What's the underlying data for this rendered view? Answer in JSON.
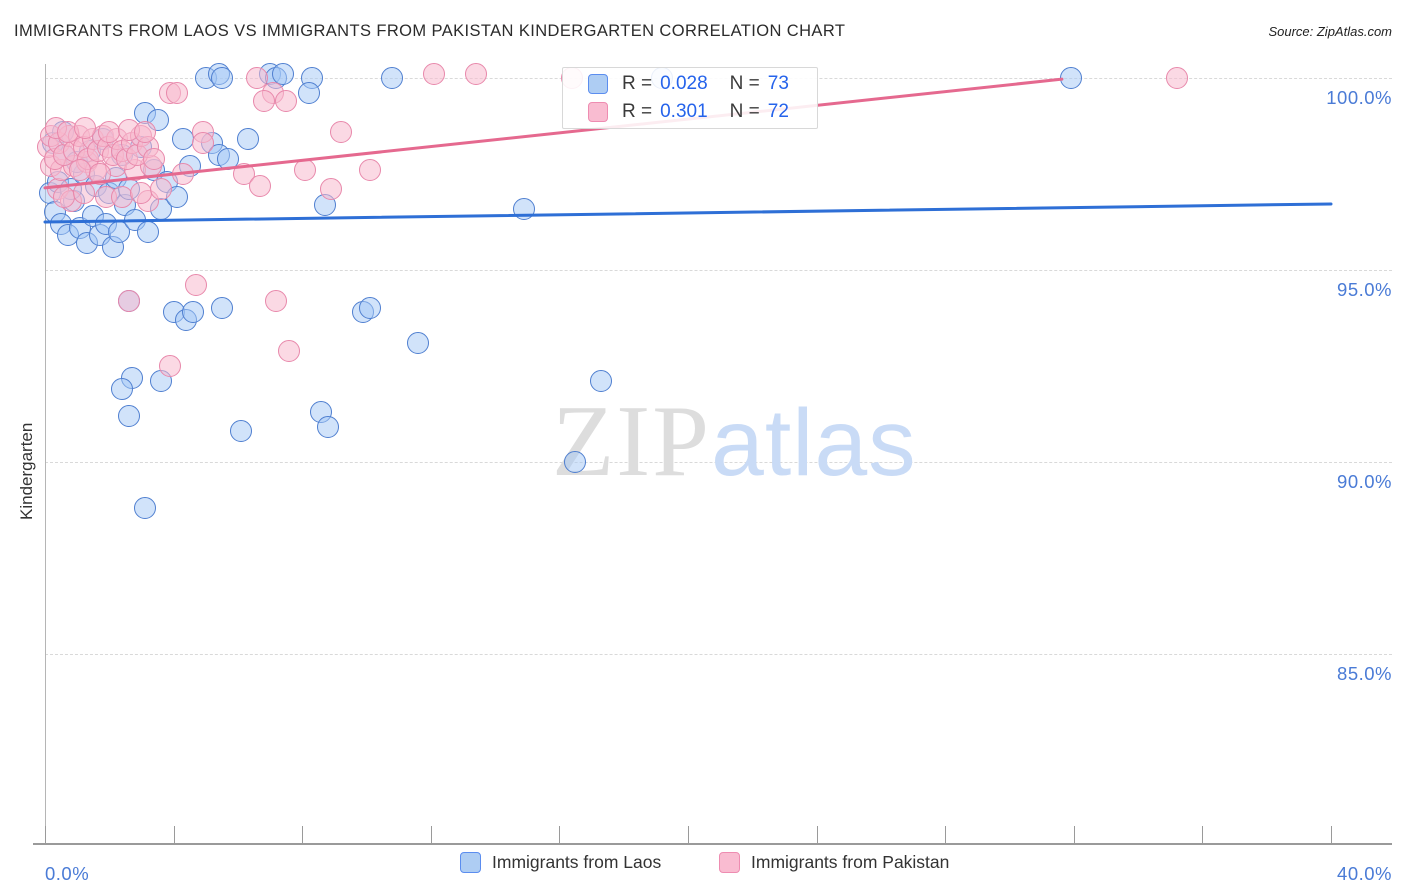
{
  "header": {
    "title": "IMMIGRANTS FROM LAOS VS IMMIGRANTS FROM PAKISTAN KINDERGARTEN CORRELATION CHART",
    "source": "Source: ZipAtlas.com"
  },
  "watermark": {
    "zip": "ZIP",
    "atlas": "atlas"
  },
  "axes": {
    "y_label": "Kindergarten",
    "y_ticks": [
      {
        "value": 100,
        "label": "100.0%"
      },
      {
        "value": 95,
        "label": "95.0%"
      },
      {
        "value": 90,
        "label": "90.0%"
      },
      {
        "value": 85,
        "label": "85.0%"
      }
    ],
    "x_min_label": "0.0%",
    "x_max_label": "40.0%",
    "x_tick_count": 11
  },
  "legend_box": {
    "rows": [
      {
        "series": "laos",
        "r_label": "R =",
        "r_value": "0.028",
        "n_label": "N =",
        "n_value": "73"
      },
      {
        "series": "pak",
        "r_label": "R =",
        "r_value": "0.301",
        "n_label": "N =",
        "n_value": "72"
      }
    ]
  },
  "bottom_legend": [
    {
      "series": "laos",
      "label": "Immigrants from Laos"
    },
    {
      "series": "pak",
      "label": "Immigrants from Pakistan"
    }
  ],
  "colors": {
    "laos_fill": "rgba(164,200,245,0.50)",
    "laos_stroke": "#4f7fd0",
    "laos_trend": "#2e6fd6",
    "pak_fill": "rgba(248,185,206,0.55)",
    "pak_stroke": "#e888ab",
    "pak_trend": "#e5698f",
    "axis_label": "#4a7bd6",
    "grid": "#d9d9d9"
  },
  "chart_data": {
    "type": "scatter",
    "xlabel": "",
    "ylabel": "Kindergarten",
    "xlim": [
      0,
      40
    ],
    "ylim": [
      80.5,
      100.35
    ],
    "grid": "horizontal-dashed",
    "legend_position": "top-center and bottom",
    "series": [
      {
        "name": "Immigrants from Laos",
        "r": 0.028,
        "n": 73,
        "class": "laos",
        "trend": {
          "x1": 0,
          "y1": 96.25,
          "x2": 40,
          "y2": 96.72
        },
        "points": [
          [
            5.0,
            100
          ],
          [
            5.4,
            100.1
          ],
          [
            5.5,
            100
          ],
          [
            7.0,
            100.1
          ],
          [
            7.2,
            100
          ],
          [
            7.4,
            100.1
          ],
          [
            8.3,
            100
          ],
          [
            8.2,
            99.6
          ],
          [
            10.8,
            100
          ],
          [
            19.2,
            100
          ],
          [
            31.9,
            100
          ],
          [
            3.1,
            99.1
          ],
          [
            3.5,
            98.9
          ],
          [
            4.3,
            98.4
          ],
          [
            6.3,
            98.4
          ],
          [
            5.2,
            98.3
          ],
          [
            5.4,
            98.0
          ],
          [
            5.7,
            97.9
          ],
          [
            8.7,
            96.7
          ],
          [
            14.9,
            96.6
          ],
          [
            2.6,
            94.2
          ],
          [
            4.0,
            93.9
          ],
          [
            4.4,
            93.7
          ],
          [
            4.6,
            93.9
          ],
          [
            5.5,
            94.0
          ],
          [
            9.9,
            93.9
          ],
          [
            10.1,
            94.0
          ],
          [
            11.6,
            93.1
          ],
          [
            17.3,
            92.1
          ],
          [
            2.7,
            92.2
          ],
          [
            2.4,
            91.9
          ],
          [
            3.6,
            92.1
          ],
          [
            2.6,
            91.2
          ],
          [
            6.1,
            90.8
          ],
          [
            8.6,
            91.3
          ],
          [
            8.8,
            90.9
          ],
          [
            16.5,
            90.0
          ],
          [
            3.1,
            88.8
          ],
          [
            0.15,
            97.0
          ],
          [
            0.3,
            96.5
          ],
          [
            0.5,
            96.2
          ],
          [
            0.7,
            95.9
          ],
          [
            0.9,
            96.8
          ],
          [
            1.1,
            96.1
          ],
          [
            1.3,
            95.7
          ],
          [
            1.5,
            96.4
          ],
          [
            1.7,
            95.9
          ],
          [
            1.9,
            96.2
          ],
          [
            2.1,
            95.6
          ],
          [
            2.3,
            96.0
          ],
          [
            0.4,
            97.3
          ],
          [
            0.8,
            97.1
          ],
          [
            1.2,
            97.5
          ],
          [
            1.6,
            97.2
          ],
          [
            2.0,
            97.0
          ],
          [
            2.5,
            96.7
          ],
          [
            2.8,
            96.3
          ],
          [
            3.2,
            96.0
          ],
          [
            0.6,
            98.0
          ],
          [
            1.0,
            97.8
          ],
          [
            1.4,
            98.1
          ],
          [
            2.2,
            97.4
          ],
          [
            2.6,
            97.1
          ],
          [
            3.4,
            97.6
          ],
          [
            3.8,
            97.3
          ],
          [
            0.25,
            98.3
          ],
          [
            0.55,
            98.6
          ],
          [
            3.0,
            98.2
          ],
          [
            1.8,
            98.4
          ],
          [
            2.4,
            98.0
          ],
          [
            3.6,
            96.6
          ],
          [
            4.1,
            96.9
          ],
          [
            4.5,
            97.7
          ]
        ]
      },
      {
        "name": "Immigrants from Pakistan",
        "r": 0.301,
        "n": 72,
        "class": "pak",
        "trend": {
          "x1": 0,
          "y1": 97.14,
          "x2": 31.63,
          "y2": 99.97
        },
        "points": [
          [
            6.6,
            100
          ],
          [
            12.1,
            100.1
          ],
          [
            13.4,
            100.1
          ],
          [
            16.4,
            100
          ],
          [
            35.2,
            100
          ],
          [
            7.1,
            99.6
          ],
          [
            6.8,
            99.4
          ],
          [
            7.5,
            99.4
          ],
          [
            3.9,
            99.6
          ],
          [
            4.1,
            99.6
          ],
          [
            9.2,
            98.6
          ],
          [
            4.9,
            98.6
          ],
          [
            10.1,
            97.6
          ],
          [
            6.2,
            97.5
          ],
          [
            6.7,
            97.2
          ],
          [
            8.1,
            97.6
          ],
          [
            8.9,
            97.1
          ],
          [
            2.6,
            94.2
          ],
          [
            7.2,
            94.2
          ],
          [
            7.6,
            92.9
          ],
          [
            3.9,
            92.5
          ],
          [
            4.7,
            94.6
          ],
          [
            4.9,
            98.3
          ],
          [
            3.2,
            96.8
          ],
          [
            0.4,
            97.1
          ],
          [
            0.8,
            96.8
          ],
          [
            0.2,
            97.7
          ],
          [
            0.5,
            97.6
          ],
          [
            0.9,
            97.7
          ],
          [
            1.3,
            97.8
          ],
          [
            1.6,
            97.6
          ],
          [
            2.2,
            97.7
          ],
          [
            2.8,
            97.6
          ],
          [
            3.3,
            97.7
          ],
          [
            0.6,
            96.9
          ],
          [
            1.2,
            97.0
          ],
          [
            1.9,
            96.9
          ],
          [
            2.4,
            96.9
          ],
          [
            3.0,
            97.0
          ],
          [
            3.6,
            97.1
          ],
          [
            4.3,
            97.5
          ],
          [
            0.1,
            98.2
          ],
          [
            0.2,
            98.5
          ],
          [
            0.3,
            97.9
          ],
          [
            0.45,
            98.3
          ],
          [
            0.6,
            98.0
          ],
          [
            0.75,
            98.5
          ],
          [
            0.9,
            98.1
          ],
          [
            1.05,
            98.5
          ],
          [
            1.2,
            98.2
          ],
          [
            1.35,
            97.9
          ],
          [
            1.5,
            98.4
          ],
          [
            1.65,
            98.1
          ],
          [
            1.8,
            98.5
          ],
          [
            1.95,
            98.2
          ],
          [
            2.1,
            98.0
          ],
          [
            2.25,
            98.4
          ],
          [
            2.4,
            98.1
          ],
          [
            2.55,
            97.9
          ],
          [
            2.7,
            98.3
          ],
          [
            2.85,
            98.0
          ],
          [
            3.0,
            98.5
          ],
          [
            3.2,
            98.2
          ],
          [
            3.4,
            97.9
          ],
          [
            1.1,
            97.6
          ],
          [
            1.7,
            97.5
          ],
          [
            0.35,
            98.7
          ],
          [
            0.7,
            98.6
          ],
          [
            1.25,
            98.7
          ],
          [
            2.0,
            98.6
          ],
          [
            2.6,
            98.65
          ],
          [
            3.1,
            98.6
          ]
        ]
      }
    ]
  }
}
